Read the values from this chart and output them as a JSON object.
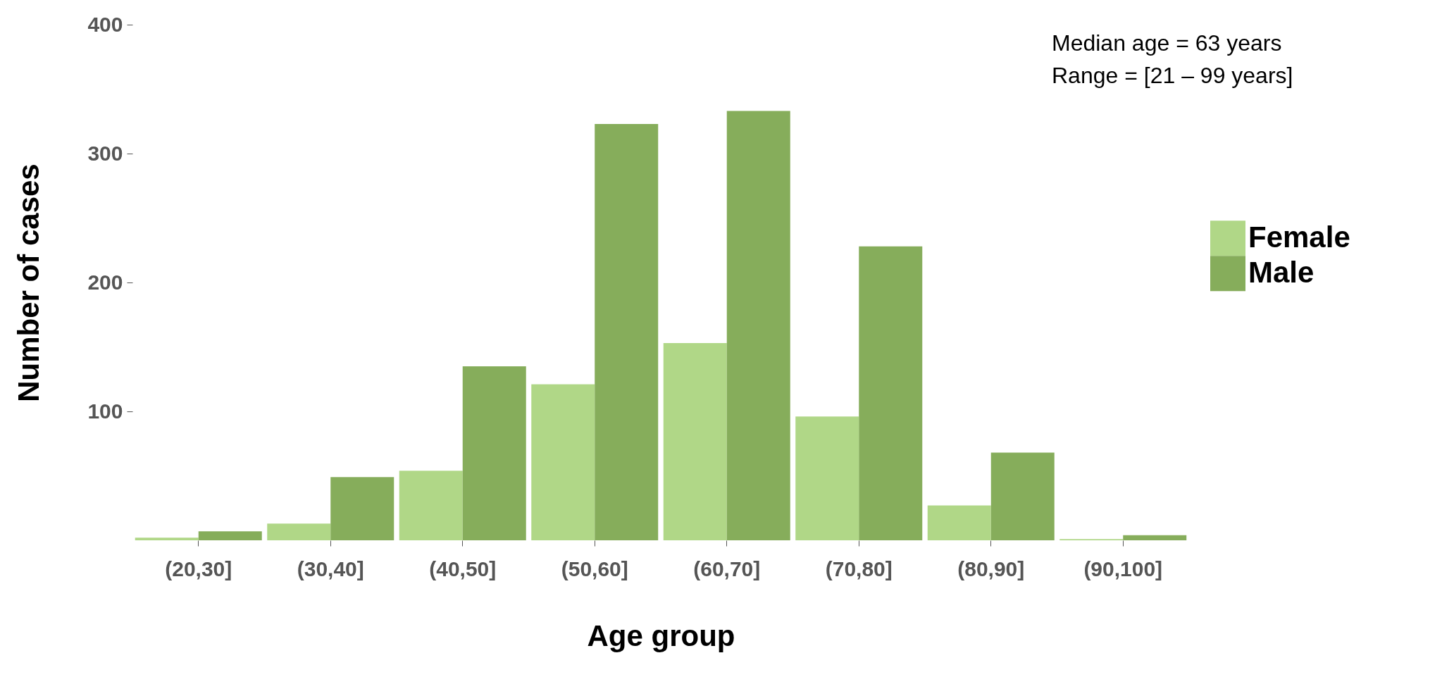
{
  "chart_data": {
    "type": "bar",
    "xlabel": "Age group",
    "ylabel": "Number of cases",
    "categories": [
      "(20,30]",
      "(30,40]",
      "(40,50]",
      "(50,60]",
      "(60,70]",
      "(70,80]",
      "(80,90]",
      "(90,100]"
    ],
    "series": [
      {
        "name": "Female",
        "color": "#b0d787",
        "values": [
          2,
          13,
          54,
          121,
          153,
          96,
          27,
          1
        ]
      },
      {
        "name": "Male",
        "color": "#86ad5b",
        "values": [
          7,
          49,
          135,
          323,
          333,
          228,
          68,
          4
        ]
      }
    ],
    "ylim": [
      0,
      400
    ],
    "yticks": [
      100,
      200,
      300,
      400
    ],
    "grid": false,
    "legend": "right",
    "annotations": [
      "Median age = 63 years",
      "Range = [21 – 99 years]"
    ]
  }
}
